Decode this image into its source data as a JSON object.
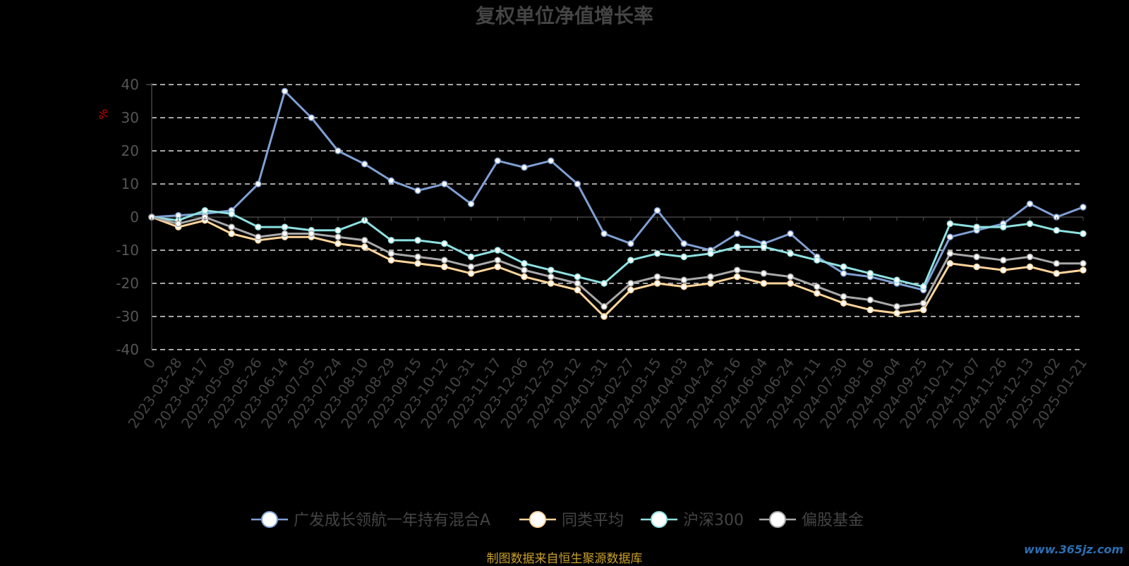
{
  "title": "复权单位净值增长率",
  "source_note": "制图数据来自恒生聚源数据库",
  "watermark": "www.365jz.com",
  "chart_data": {
    "type": "line",
    "title": "复权单位净值增长率",
    "ylabel": "%",
    "ylim": [
      -40,
      40
    ],
    "yticks": [
      40,
      30,
      20,
      10,
      0,
      -10,
      -20,
      -30,
      -40
    ],
    "grid": true,
    "legend_position": "bottom",
    "x": [
      "0",
      "2023-03-28",
      "2023-04-17",
      "2023-05-09",
      "2023-05-26",
      "2023-06-14",
      "2023-07-05",
      "2023-07-24",
      "2023-08-10",
      "2023-08-29",
      "2023-09-15",
      "2023-10-12",
      "2023-10-31",
      "2023-11-17",
      "2023-12-06",
      "2023-12-25",
      "2024-01-12",
      "2024-01-31",
      "2024-02-27",
      "2024-03-15",
      "2024-04-03",
      "2024-04-24",
      "2024-05-16",
      "2024-06-04",
      "2024-06-24",
      "2024-07-11",
      "2024-07-30",
      "2024-08-16",
      "2024-09-04",
      "2024-09-25",
      "2024-10-21",
      "2024-11-07",
      "2024-11-26",
      "2024-12-13",
      "2025-01-02",
      "2025-01-21"
    ],
    "series": [
      {
        "name": "广发成长领航一年持有混合A",
        "color": "#7f9fd3",
        "values": [
          0,
          0.5,
          1,
          2,
          10,
          38,
          30,
          20,
          16,
          11,
          8,
          10,
          4,
          17,
          15,
          17,
          10,
          -5,
          -8,
          2,
          -8,
          -10,
          -5,
          -8,
          -5,
          -12,
          -17,
          -18,
          -20,
          -22,
          -6,
          -4,
          -2,
          4,
          0,
          3
        ]
      },
      {
        "name": "同类平均",
        "color": "#ffd49a",
        "values": [
          0,
          -3,
          -1,
          -5,
          -7,
          -6,
          -6,
          -8,
          -9,
          -13,
          -14,
          -15,
          -17,
          -15,
          -18,
          -20,
          -22,
          -30,
          -22,
          -20,
          -21,
          -20,
          -18,
          -20,
          -20,
          -23,
          -26,
          -28,
          -29,
          -28,
          -14,
          -15,
          -16,
          -15,
          -17,
          -16
        ]
      },
      {
        "name": "沪深300",
        "color": "#8ee0e0",
        "values": [
          0,
          -1,
          2,
          1,
          -3,
          -3,
          -4,
          -4,
          -1,
          -7,
          -7,
          -8,
          -12,
          -10,
          -14,
          -16,
          -18,
          -20,
          -13,
          -11,
          -12,
          -11,
          -9,
          -9,
          -11,
          -13,
          -15,
          -17,
          -19,
          -21,
          -2,
          -3,
          -3,
          -2,
          -4,
          -5
        ]
      },
      {
        "name": "偏股基金",
        "color": "#a8a8a8",
        "values": [
          0,
          -2,
          0,
          -3,
          -6,
          -5,
          -5,
          -6,
          -7,
          -11,
          -12,
          -13,
          -15,
          -13,
          -16,
          -18,
          -20,
          -27,
          -20,
          -18,
          -19,
          -18,
          -16,
          -17,
          -18,
          -21,
          -24,
          -25,
          -27,
          -26,
          -11,
          -12,
          -13,
          -12,
          -14,
          -14
        ]
      }
    ]
  }
}
